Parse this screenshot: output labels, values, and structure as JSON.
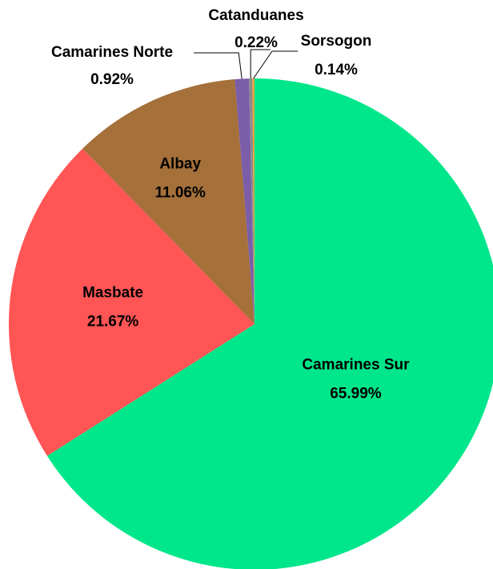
{
  "chart_data": {
    "type": "pie",
    "categories": [
      "Camarines Sur",
      "Masbate",
      "Albay",
      "Camarines Norte",
      "Catanduanes",
      "Sorsogon"
    ],
    "values": [
      65.99,
      21.67,
      11.06,
      0.92,
      0.22,
      0.14
    ],
    "value_labels": [
      "65.99%",
      "21.67%",
      "11.06%",
      "0.92%",
      "0.22%",
      "0.14%"
    ],
    "colors": [
      "#00e68a",
      "#ff5555",
      "#a5703a",
      "#7b5ea8",
      "#8c8c8c",
      "#e8a33c"
    ]
  }
}
